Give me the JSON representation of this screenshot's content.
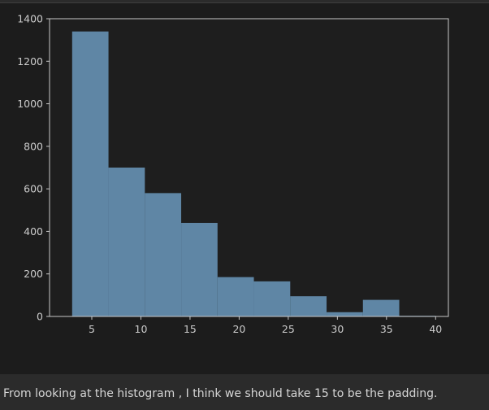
{
  "markdown": {
    "text": "From looking at the histogram , I think we should take 15 to be the padding."
  },
  "colors": {
    "plot_background": "#1e1e1e",
    "bar_fill": "#5f86a5",
    "axes_spine": "#c8c8c8",
    "tick_text": "#cccccc",
    "text": "#d6d6d6"
  },
  "chart_data": {
    "type": "bar",
    "subtype": "histogram",
    "title": "",
    "xlabel": "",
    "ylabel": "",
    "xlim": [
      0.7,
      41.3
    ],
    "ylim": [
      0,
      1400
    ],
    "grid": false,
    "legend": "none",
    "bins": [
      {
        "start": 3.0,
        "end": 6.7,
        "count": 1340
      },
      {
        "start": 6.7,
        "end": 10.4,
        "count": 700
      },
      {
        "start": 10.4,
        "end": 14.1,
        "count": 580
      },
      {
        "start": 14.1,
        "end": 17.8,
        "count": 440
      },
      {
        "start": 17.8,
        "end": 21.5,
        "count": 185
      },
      {
        "start": 21.5,
        "end": 25.2,
        "count": 165
      },
      {
        "start": 25.2,
        "end": 28.9,
        "count": 95
      },
      {
        "start": 28.9,
        "end": 32.6,
        "count": 20
      },
      {
        "start": 32.6,
        "end": 36.3,
        "count": 78
      },
      {
        "start": 36.3,
        "end": 40.0,
        "count": 3
      }
    ],
    "xticks": [
      5,
      10,
      15,
      20,
      25,
      30,
      35,
      40
    ],
    "xtick_labels": [
      "5",
      "10",
      "15",
      "20",
      "25",
      "30",
      "35",
      "40"
    ],
    "yticks": [
      0,
      200,
      400,
      600,
      800,
      1000,
      1200,
      1400
    ],
    "ytick_labels": [
      "0",
      "200",
      "400",
      "600",
      "800",
      "1000",
      "1200",
      "1400"
    ]
  }
}
